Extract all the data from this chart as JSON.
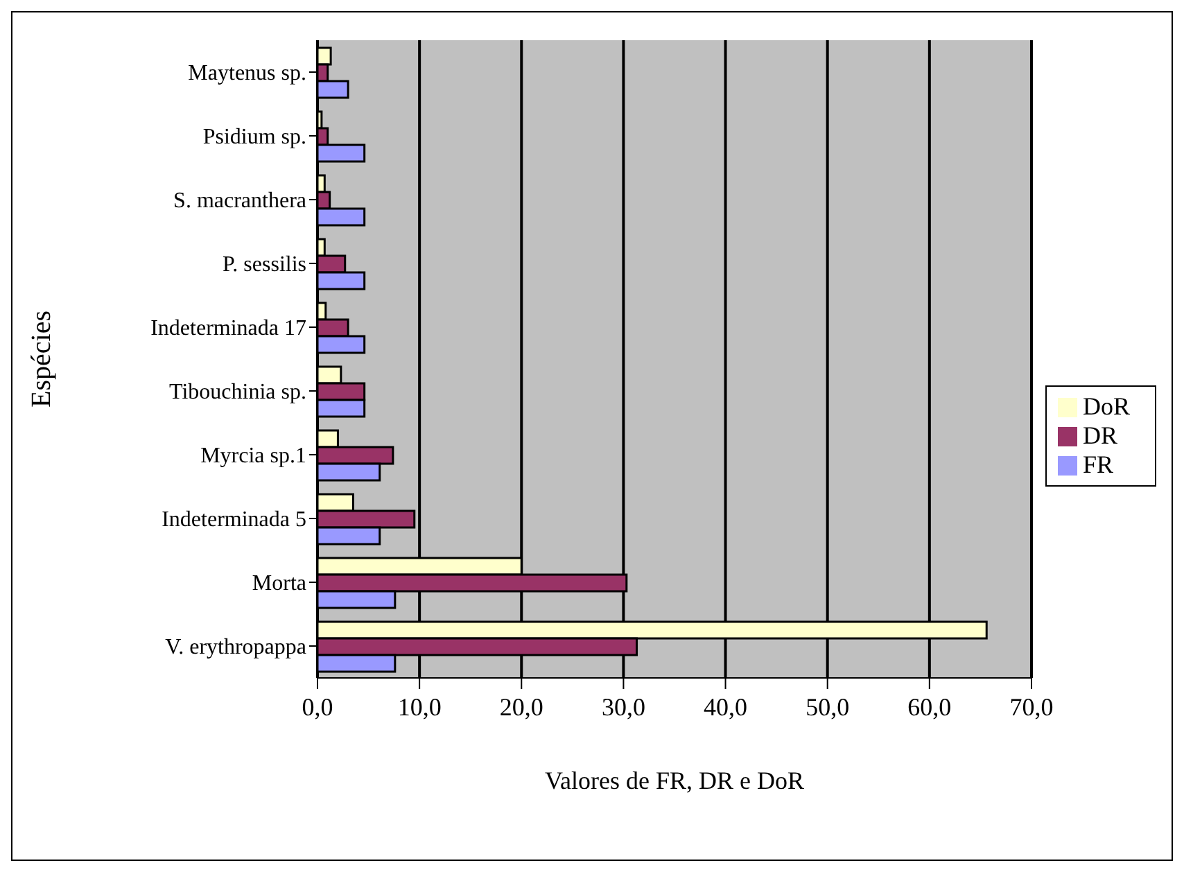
{
  "chart_data": {
    "type": "bar",
    "orientation": "horizontal",
    "xlabel": "Valores de FR, DR e  DoR",
    "ylabel": "Espécies",
    "categories": [
      "Maytenus sp.",
      "Psidium sp.",
      "S. macranthera",
      "P. sessilis",
      "Indeterminada 17",
      "Tibouchinia sp.",
      "Myrcia sp.1",
      "Indeterminada 5",
      "Morta",
      "V. erythropappa"
    ],
    "series": [
      {
        "name": "DoR",
        "color": "#ffffcc",
        "values": [
          1.3,
          0.4,
          0.7,
          0.7,
          0.8,
          2.3,
          2.0,
          3.5,
          20.0,
          65.6
        ]
      },
      {
        "name": "DR",
        "color": "#993366",
        "values": [
          1.0,
          1.0,
          1.2,
          2.7,
          3.0,
          4.6,
          7.4,
          9.5,
          30.3,
          31.3
        ]
      },
      {
        "name": "FR",
        "color": "#9999ff",
        "values": [
          3.0,
          4.6,
          4.6,
          4.6,
          4.6,
          4.6,
          6.1,
          6.1,
          7.6,
          7.6
        ]
      }
    ],
    "xlim": [
      0,
      70
    ],
    "xticks": [
      {
        "value": 0,
        "label": "0,0"
      },
      {
        "value": 10,
        "label": "10,0"
      },
      {
        "value": 20,
        "label": "20,0"
      },
      {
        "value": 30,
        "label": "30,0"
      },
      {
        "value": 40,
        "label": "40,0"
      },
      {
        "value": 50,
        "label": "50,0"
      },
      {
        "value": 60,
        "label": "60,0"
      },
      {
        "value": 70,
        "label": "70,0"
      }
    ],
    "grid": "x",
    "legend": "right"
  }
}
